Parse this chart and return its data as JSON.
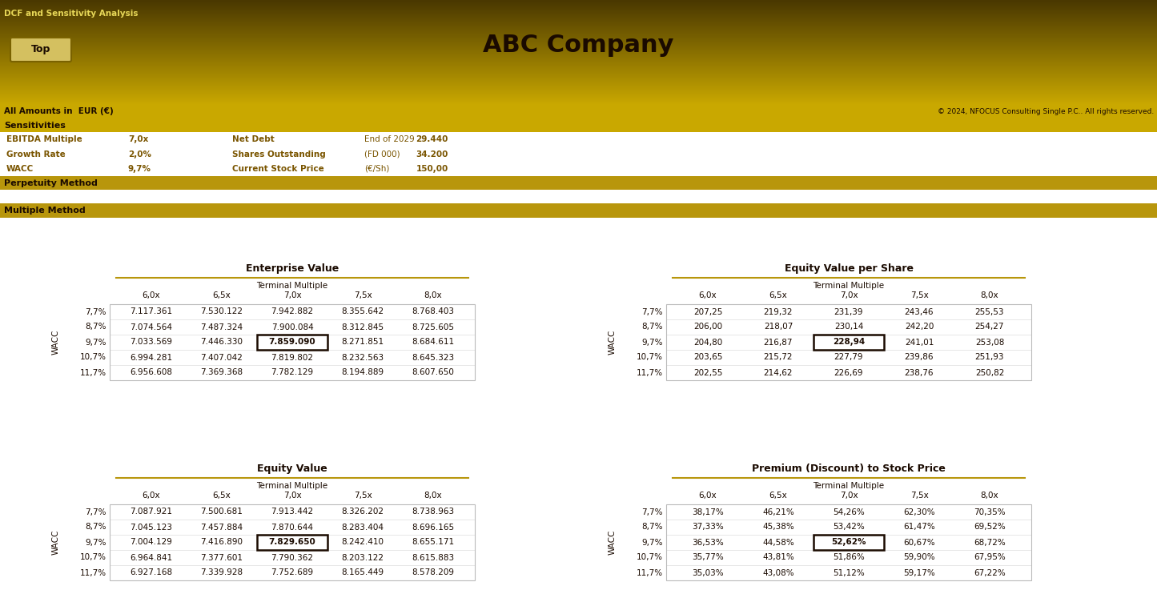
{
  "header_title": "DCF and Sensitivity Analysis",
  "title": "ABC Company",
  "subtitle": "All Amounts in  EUR (€)",
  "copyright": "© 2024, NFOCUS Consulting Single P.C.. All rights reserved.",
  "button_label": "Top",
  "sens_left": [
    [
      "EBITDA Multiple",
      "7,0x"
    ],
    [
      "Growth Rate",
      "2,0%"
    ],
    [
      "WACC",
      "9,7%"
    ]
  ],
  "sens_right": [
    [
      "Net Debt",
      "End of 2029",
      "29.440"
    ],
    [
      "Shares Outstanding",
      "(FD 000)",
      "34.200"
    ],
    [
      "Current Stock Price",
      "(€/Sh)",
      "150,00"
    ]
  ],
  "section_perpetuity": "Perpetuity Method",
  "section_multiple": "Multiple Method",
  "wacc_rows": [
    "7,7%",
    "8,7%",
    "9,7%",
    "10,7%",
    "11,7%"
  ],
  "terminal_multiples": [
    "6,0x",
    "6,5x",
    "7,0x",
    "7,5x",
    "8,0x"
  ],
  "highlight_row": 2,
  "highlight_col": 2,
  "enterprise_value": {
    "title": "Enterprise Value",
    "data": [
      [
        "7.117.361",
        "7.530.122",
        "7.942.882",
        "8.355.642",
        "8.768.403"
      ],
      [
        "7.074.564",
        "7.487.324",
        "7.900.084",
        "8.312.845",
        "8.725.605"
      ],
      [
        "7.033.569",
        "7.446.330",
        "7.859.090",
        "8.271.851",
        "8.684.611"
      ],
      [
        "6.994.281",
        "7.407.042",
        "7.819.802",
        "8.232.563",
        "8.645.323"
      ],
      [
        "6.956.608",
        "7.369.368",
        "7.782.129",
        "8.194.889",
        "8.607.650"
      ]
    ]
  },
  "equity_value_per_share": {
    "title": "Equity Value per Share",
    "data": [
      [
        "207,25",
        "219,32",
        "231,39",
        "243,46",
        "255,53"
      ],
      [
        "206,00",
        "218,07",
        "230,14",
        "242,20",
        "254,27"
      ],
      [
        "204,80",
        "216,87",
        "228,94",
        "241,01",
        "253,08"
      ],
      [
        "203,65",
        "215,72",
        "227,79",
        "239,86",
        "251,93"
      ],
      [
        "202,55",
        "214,62",
        "226,69",
        "238,76",
        "250,82"
      ]
    ]
  },
  "equity_value": {
    "title": "Equity Value",
    "data": [
      [
        "7.087.921",
        "7.500.681",
        "7.913.442",
        "8.326.202",
        "8.738.963"
      ],
      [
        "7.045.123",
        "7.457.884",
        "7.870.644",
        "8.283.404",
        "8.696.165"
      ],
      [
        "7.004.129",
        "7.416.890",
        "7.829.650",
        "8.242.410",
        "8.655.171"
      ],
      [
        "6.964.841",
        "7.377.601",
        "7.790.362",
        "8.203.122",
        "8.615.883"
      ],
      [
        "6.927.168",
        "7.339.928",
        "7.752.689",
        "8.165.449",
        "8.578.209"
      ]
    ]
  },
  "premium_discount": {
    "title": "Premium (Discount) to Stock Price",
    "data": [
      [
        "38,17%",
        "46,21%",
        "54,26%",
        "62,30%",
        "70,35%"
      ],
      [
        "37,33%",
        "45,38%",
        "53,42%",
        "61,47%",
        "69,52%"
      ],
      [
        "36,53%",
        "44,58%",
        "52,62%",
        "60,67%",
        "68,72%"
      ],
      [
        "35,77%",
        "43,81%",
        "51,86%",
        "59,90%",
        "67,95%"
      ],
      [
        "35,03%",
        "43,08%",
        "51,12%",
        "59,17%",
        "67,22%"
      ]
    ]
  },
  "grad_top_color": "#4A3800",
  "grad_bot_color": "#C9A800",
  "section_bar_color": "#B8960C",
  "sens_bar_color": "#D4B000",
  "white": "#FFFFFF",
  "text_dark": "#1A0A00",
  "text_gold": "#7A5500",
  "mid_gold": "#B8960C",
  "btn_face": "#D4C060",
  "btn_edge": "#7A6200",
  "border_color": "#BBBBBB",
  "sep_color": "#DDDDDD"
}
